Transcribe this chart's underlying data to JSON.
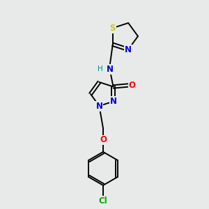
{
  "bg_color": "#e8eaea",
  "atom_colors": {
    "C": "#000000",
    "N": "#0000cc",
    "O": "#ff0000",
    "S": "#cccc00",
    "Cl": "#00aa00",
    "H": "#008888"
  },
  "bond_color": "#000000",
  "font_size_atom": 8.5
}
